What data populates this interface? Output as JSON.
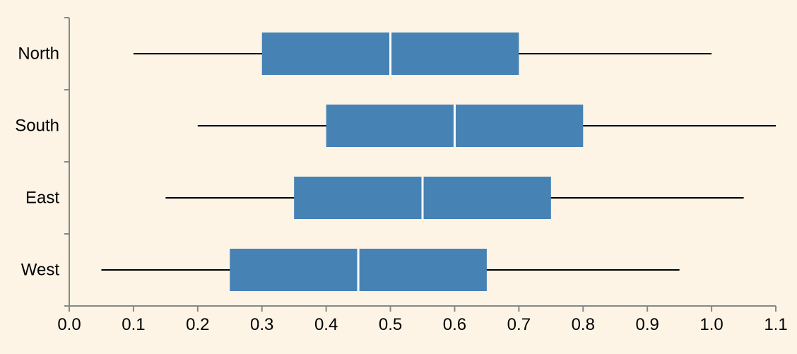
{
  "chart_data": {
    "type": "boxplot",
    "orientation": "horizontal",
    "title": "",
    "xlabel": "",
    "ylabel": "",
    "xlim": [
      0.0,
      1.1
    ],
    "x_ticks": [
      0.0,
      0.1,
      0.2,
      0.3,
      0.4,
      0.5,
      0.6,
      0.7,
      0.8,
      0.9,
      1.0,
      1.1
    ],
    "x_tick_labels": [
      "0.0",
      "0.1",
      "0.2",
      "0.3",
      "0.4",
      "0.5",
      "0.6",
      "0.7",
      "0.8",
      "0.9",
      "1.0",
      "1.1"
    ],
    "grid": false,
    "categories": [
      "North",
      "South",
      "East",
      "West"
    ],
    "boxes": [
      {
        "category": "North",
        "min": 0.1,
        "q1": 0.3,
        "median": 0.5,
        "q3": 0.7,
        "max": 1.0
      },
      {
        "category": "South",
        "min": 0.2,
        "q1": 0.4,
        "median": 0.6,
        "q3": 0.8,
        "max": 1.1
      },
      {
        "category": "East",
        "min": 0.15,
        "q1": 0.35,
        "median": 0.55,
        "q3": 0.75,
        "max": 1.05
      },
      {
        "category": "West",
        "min": 0.05,
        "q1": 0.25,
        "median": 0.45,
        "q3": 0.65,
        "max": 0.95
      }
    ],
    "colors": {
      "background": "#fdf4e6",
      "box_fill": "#4682b4",
      "median_line": "#ffffff",
      "whisker": "#000000",
      "axis": "#888888"
    }
  }
}
